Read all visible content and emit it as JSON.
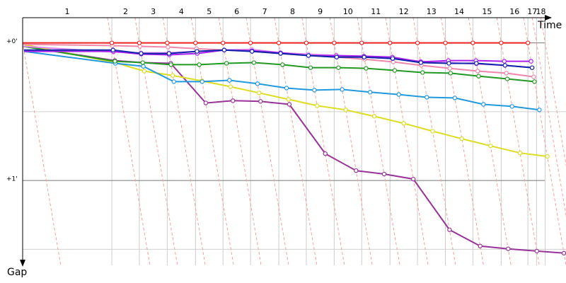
{
  "chart_data": {
    "type": "line",
    "x_label": "Time",
    "y_label": "Gap",
    "laps": [
      0,
      227,
      297,
      368,
      440,
      510,
      580,
      652,
      722,
      793,
      863,
      935,
      1005,
      1076,
      1146,
      1218,
      1286,
      1308,
      1330
    ],
    "lap_labels": [
      "1",
      "2",
      "3",
      "4",
      "5",
      "6",
      "7",
      "8",
      "9",
      "10",
      "11",
      "12",
      "13",
      "14",
      "15",
      "16",
      "17",
      "18"
    ],
    "xlim": [
      0,
      1383
    ],
    "ylim": [
      -11,
      97
    ],
    "yticks": [
      {
        "value": 0,
        "label": "+0'"
      },
      {
        "value": 60,
        "label": "+1'"
      }
    ],
    "minor_yticks": [
      30,
      90
    ],
    "series": [
      {
        "name": "Purple",
        "color": "#993399",
        "values": [
          1.5,
          7.7,
          8.6,
          8.9,
          26.2,
          25.2,
          25.5,
          26.8,
          48.3,
          55.7,
          57.2,
          59.4,
          81.5,
          88.6,
          89.8,
          90.8,
          91.7
        ]
      },
      {
        "name": "Yellow",
        "color": "#dddd22",
        "values": [
          0.6,
          8.6,
          12.3,
          14.2,
          16.6,
          19.1,
          21.8,
          24.6,
          27.4,
          29.2,
          32,
          35.1,
          38.5,
          41.8,
          44.9,
          48,
          49.5
        ]
      },
      {
        "name": "Cyan",
        "color": "#2299dd",
        "values": [
          3.7,
          8.9,
          10.2,
          16.9,
          16.9,
          16.3,
          17.8,
          19.7,
          20.6,
          20.3,
          21.5,
          22.5,
          23.7,
          24,
          26.8,
          27.7,
          29.2
        ]
      },
      {
        "name": "Green",
        "color": "#229922",
        "values": [
          1.5,
          8,
          8.6,
          9.5,
          9.5,
          8.9,
          8.6,
          9.5,
          10.8,
          10.8,
          11.1,
          12,
          12.9,
          13.2,
          14.5,
          15.7,
          16.9
        ]
      },
      {
        "name": "Pink",
        "color": "#ee88aa",
        "values": [
          0.6,
          1.2,
          1.5,
          1.8,
          2.5,
          3.1,
          3.7,
          4.6,
          5.5,
          6.2,
          7.1,
          8.3,
          9.8,
          11.1,
          12.3,
          13.2,
          14.8
        ]
      },
      {
        "name": "Light purple",
        "color": "#dd88ee",
        "values": [
          1.5,
          4,
          4.3,
          4.3,
          3.7,
          3.1,
          2.8,
          4.3,
          4.9,
          5.5,
          6.2,
          6.8,
          8,
          8.6,
          9.2,
          9.8,
          10.8
        ]
      },
      {
        "name": "Violet",
        "color": "#aa22ee",
        "values": [
          3.7,
          3.7,
          4.9,
          5.2,
          4.6,
          3.1,
          3.4,
          4.3,
          5.5,
          5.5,
          5.8,
          6.2,
          8.3,
          7.7,
          7.7,
          8,
          8
        ]
      },
      {
        "name": "Dark blue",
        "color": "#1122aa",
        "values": [
          3.1,
          3.1,
          4.6,
          4.6,
          3.7,
          3.1,
          3.7,
          4.6,
          5.5,
          6.2,
          6.2,
          6.8,
          8.6,
          8.9,
          8.9,
          9.8,
          10.8
        ]
      },
      {
        "name": "Red",
        "color": "#ee2222",
        "values": [
          0,
          0,
          0,
          0,
          0,
          0,
          0,
          0,
          0,
          0,
          0,
          0,
          0,
          0,
          0,
          0,
          0
        ]
      }
    ]
  }
}
